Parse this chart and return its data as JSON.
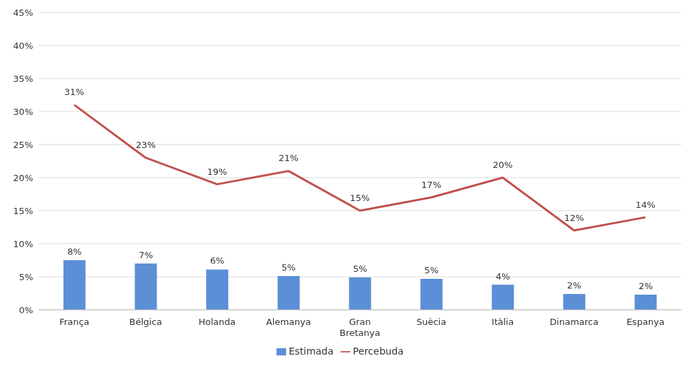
{
  "chart_data": {
    "type": "bar",
    "categories": [
      "França",
      "Bélgica",
      "Holanda",
      "Alemanya",
      "Gran Bretanya",
      "Suècia",
      "Itàlia",
      "Dinamarca",
      "Espanya"
    ],
    "series": [
      {
        "name": "Estimada",
        "color": "#5b8fd6",
        "values": [
          7.5,
          7.0,
          6.1,
          5.1,
          4.9,
          4.7,
          3.8,
          2.4,
          2.3
        ],
        "value_labels": [
          "8%",
          "7%",
          "6%",
          "5%",
          "5%",
          "5%",
          "4%",
          "2%",
          "2%"
        ]
      },
      {
        "name": "Percebuda",
        "type": "line",
        "color": "#c0504d",
        "values": [
          31,
          23,
          19,
          21,
          15,
          17,
          20,
          12,
          14
        ],
        "value_labels": [
          "31%",
          "23%",
          "19%",
          "21%",
          "15%",
          "17%",
          "20%",
          "12%",
          "14%"
        ]
      }
    ],
    "ylim": [
      0,
      45
    ],
    "yticks": [
      {
        "value": 0,
        "label": "0%"
      },
      {
        "value": 5,
        "label": "5%"
      },
      {
        "value": 10,
        "label": "10%"
      },
      {
        "value": 15,
        "label": "15%"
      },
      {
        "value": 20,
        "label": "20%"
      },
      {
        "value": 25,
        "label": "25%"
      },
      {
        "value": 30,
        "label": "30%"
      },
      {
        "value": 35,
        "label": "35%"
      },
      {
        "value": 40,
        "label": "40%"
      },
      {
        "value": 45,
        "label": "45%"
      }
    ],
    "grid": "y",
    "legend": "bottom",
    "marker": "none",
    "line_style": "solid"
  }
}
